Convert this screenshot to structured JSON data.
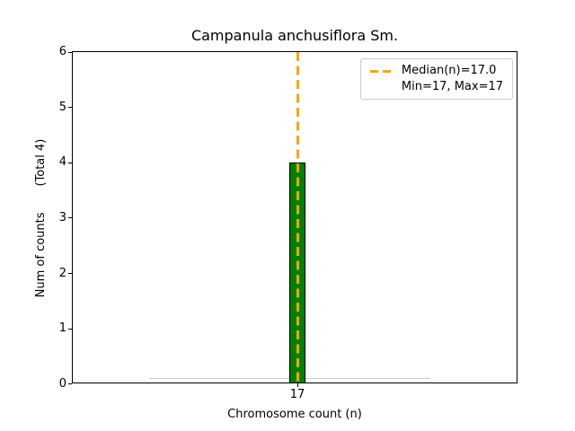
{
  "chart_data": {
    "type": "bar",
    "title": "Campanula anchusiflora Sm.",
    "xlabel": "Chromosome count (n)",
    "ylabel": "Num of counts       (Total 4)",
    "categories": [
      "17"
    ],
    "values": [
      4
    ],
    "total_counts": 4,
    "median_n": 17.0,
    "min_n": 17,
    "max_n": 17,
    "ylim": [
      0,
      6
    ],
    "yticks": [
      "0",
      "1",
      "2",
      "3",
      "4",
      "5",
      "6"
    ],
    "xticks": [
      "17"
    ],
    "grid": false,
    "legend_position": "upper right",
    "legend_entries": [
      {
        "label": "Median(n)=17.0",
        "handle": "orange-dashed-line"
      },
      {
        "label": "Min=17, Max=17",
        "handle": "none"
      }
    ],
    "colors": {
      "bar_fill": "#008000",
      "bar_edge": "#000000",
      "median_line": "#FFA500",
      "baseline": "#cccccc",
      "axes": "#000000"
    }
  }
}
